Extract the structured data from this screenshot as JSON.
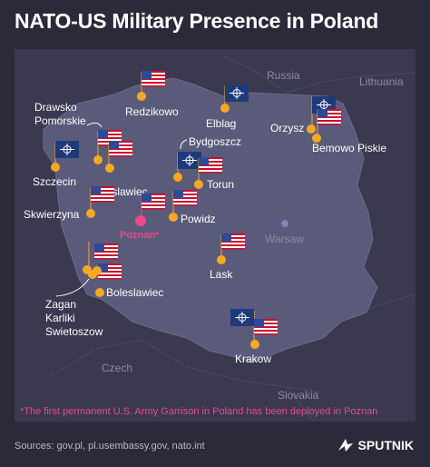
{
  "title": "NATO-US Military Presence in Poland",
  "countries": {
    "russia": "Russia",
    "lithuania": "Lithuania",
    "czech": "Czech",
    "slovakia": "Slovakia"
  },
  "capital": "Warsaw",
  "highlight_city": "Poznan*",
  "cities": {
    "redzikowo": "Redzikowo",
    "elblag": "Elblag",
    "orzysz": "Orzysz",
    "bemowo": "Bemowo Piskie",
    "drawsko": "Drawsko\nPomorskie",
    "bydgoszcz": "Bydgoszcz",
    "szczecin": "Szczecin",
    "miroslawiec": "Miroslawiec",
    "torun": "Torun",
    "skwierzyna": "Skwierzyna",
    "powidz": "Powidz",
    "lask": "Lask",
    "boleslawiec": "Boleslawiec",
    "zagan": "Zagan\nKarliki\nSwietoszow",
    "krakow": "Krakow"
  },
  "note": "*The first permanent U.S. Army Garrison in Poland has been deployed in Poznan",
  "sources": "Sources: gov.pl, pl.usembassy.gov, nato.int",
  "brand": "SPUTNIK",
  "colors": {
    "background": "#2b2a3a",
    "land_outside": "#3a3950",
    "poland": "#5a5a7a",
    "marker": "#f7a823",
    "highlight": "#e84b8a",
    "nato_flag": "#1f3a7a",
    "text": "#ffffff",
    "muted": "#8d8ca3"
  },
  "icons": [
    "us-flag-icon",
    "nato-flag-icon",
    "location-dot-icon",
    "sputnik-logo-icon"
  ]
}
